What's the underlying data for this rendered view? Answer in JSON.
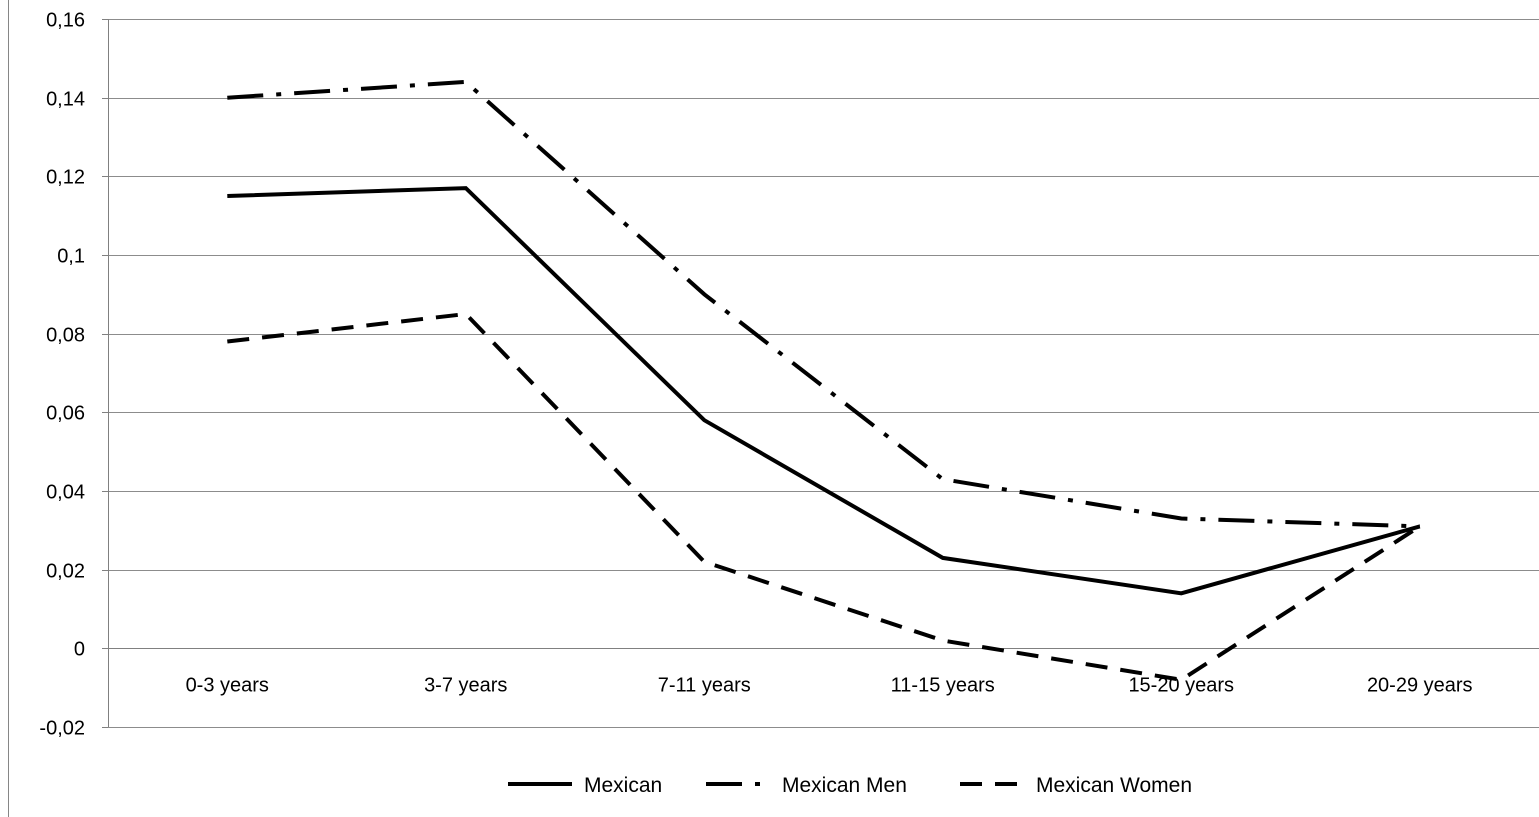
{
  "chart_data": {
    "type": "line",
    "title": "",
    "xlabel": "",
    "ylabel": "",
    "categories": [
      "0-3 years",
      "3-7 years",
      "7-11 years",
      "11-15 years",
      "15-20 years",
      "20-29 years"
    ],
    "ylim": [
      -0.02,
      0.16
    ],
    "yticks": [
      -0.02,
      0,
      0.02,
      0.04,
      0.06,
      0.08,
      0.1,
      0.12,
      0.14,
      0.16
    ],
    "ytick_labels": [
      "-0,02",
      "0",
      "0,02",
      "0,04",
      "0,06",
      "0,08",
      "0,1",
      "0,12",
      "0,14",
      "0,16"
    ],
    "grid": true,
    "legend_position": "bottom",
    "series": [
      {
        "name": "Mexican",
        "style": "solid",
        "color": "#000000",
        "values": [
          0.115,
          0.117,
          0.058,
          0.023,
          0.014,
          0.031
        ]
      },
      {
        "name": "Mexican Men",
        "style": "dash-dot",
        "color": "#000000",
        "values": [
          0.14,
          0.144,
          0.09,
          0.043,
          0.033,
          0.031
        ]
      },
      {
        "name": "Mexican Women",
        "style": "dashed",
        "color": "#000000",
        "values": [
          0.078,
          0.085,
          0.022,
          0.002,
          -0.008,
          0.031
        ]
      }
    ]
  }
}
